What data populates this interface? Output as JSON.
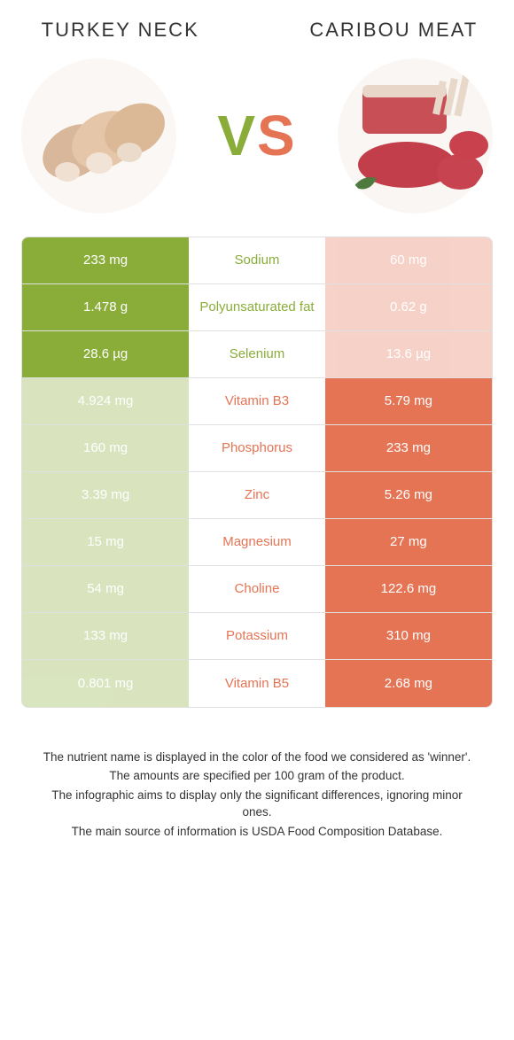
{
  "colors": {
    "left": "#8aad3a",
    "right": "#e57455",
    "mid_bg": "#ffffff",
    "text_on_color": "#ffffff",
    "mid_text": "#333333",
    "border": "#e0e0e0"
  },
  "header": {
    "left_title": "TURKEY NECK",
    "right_title": "CARIBOU MEAT",
    "vs_v": "V",
    "vs_s": "S",
    "left_image_alt": "turkey-neck-photo",
    "right_image_alt": "caribou-meat-photo"
  },
  "rows": [
    {
      "label": "Sodium",
      "left": "233 mg",
      "right": "60 mg",
      "winner": "left"
    },
    {
      "label": "Polyunsaturated fat",
      "left": "1.478 g",
      "right": "0.62 g",
      "winner": "left"
    },
    {
      "label": "Selenium",
      "left": "28.6 µg",
      "right": "13.6 µg",
      "winner": "left"
    },
    {
      "label": "Vitamin B3",
      "left": "4.924 mg",
      "right": "5.79 mg",
      "winner": "right"
    },
    {
      "label": "Phosphorus",
      "left": "160 mg",
      "right": "233 mg",
      "winner": "right"
    },
    {
      "label": "Zinc",
      "left": "3.39 mg",
      "right": "5.26 mg",
      "winner": "right"
    },
    {
      "label": "Magnesium",
      "left": "15 mg",
      "right": "27 mg",
      "winner": "right"
    },
    {
      "label": "Choline",
      "left": "54 mg",
      "right": "122.6 mg",
      "winner": "right"
    },
    {
      "label": "Potassium",
      "left": "133 mg",
      "right": "310 mg",
      "winner": "right"
    },
    {
      "label": "Vitamin B5",
      "left": "0.801 mg",
      "right": "2.68 mg",
      "winner": "right"
    }
  ],
  "footnotes": [
    "The nutrient name is displayed in the color of the food we considered as 'winner'.",
    "The amounts are specified per 100 gram of the product.",
    "The infographic aims to display only the significant differences, ignoring minor ones.",
    "The main source of information is USDA Food Composition Database."
  ]
}
